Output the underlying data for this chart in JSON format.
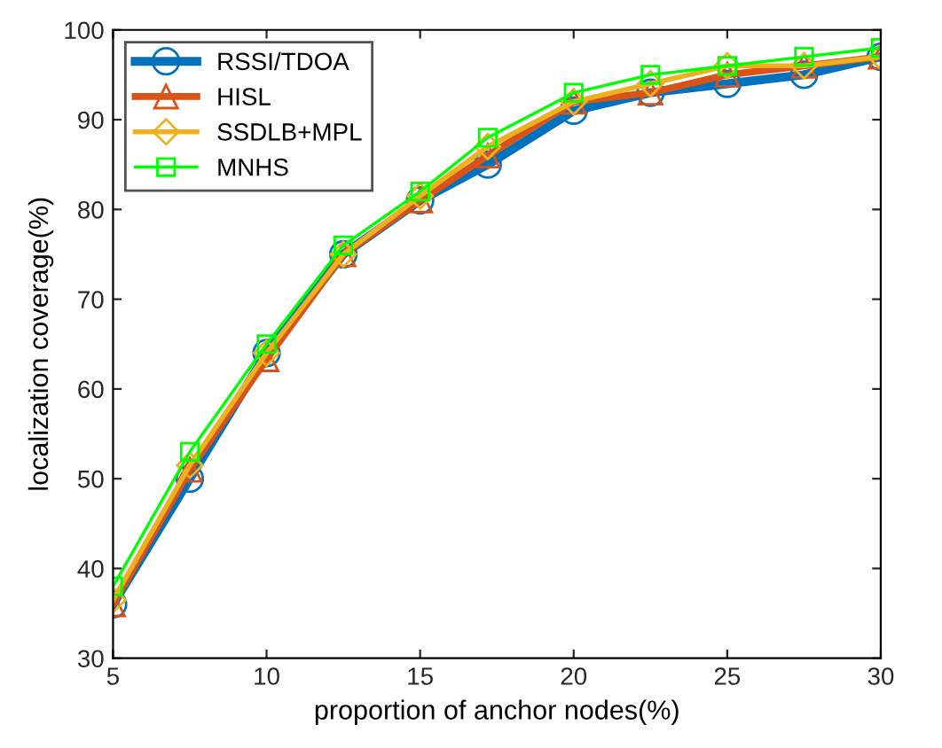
{
  "chart_data": {
    "type": "line",
    "xlabel": "proportion of anchor nodes(%)",
    "ylabel": "localization coverage(%)",
    "x": [
      5,
      7.5,
      10,
      12.5,
      15,
      17.2,
      20,
      22.5,
      25,
      27.5,
      30
    ],
    "xlim": [
      5,
      30
    ],
    "xticks": [
      5,
      10,
      15,
      20,
      25,
      30
    ],
    "ylim": [
      30,
      100
    ],
    "yticks": [
      30,
      40,
      50,
      60,
      70,
      80,
      90,
      100
    ],
    "grid": false,
    "legend": "top left",
    "series": [
      {
        "name": "RSSI/TDOA",
        "color": "#0072bd",
        "marker": "circle",
        "values": [
          36,
          50,
          64,
          75,
          81,
          85,
          91,
          93,
          94,
          95,
          97
        ]
      },
      {
        "name": "HISL",
        "color": "#d95319",
        "marker": "triangle",
        "values": [
          36,
          51,
          63.3,
          75,
          81,
          86,
          92,
          93,
          95,
          96,
          97
        ]
      },
      {
        "name": "SSDLB+MPL",
        "color": "#edb120",
        "marker": "diamond",
        "values": [
          36.5,
          51.5,
          64,
          75,
          81.5,
          87,
          92,
          94,
          96,
          96,
          97
        ]
      },
      {
        "name": "MNHS",
        "color": "#00ff00",
        "marker": "square",
        "values": [
          38,
          53,
          65,
          76,
          82,
          88,
          93,
          95,
          96,
          97,
          98
        ]
      }
    ]
  }
}
